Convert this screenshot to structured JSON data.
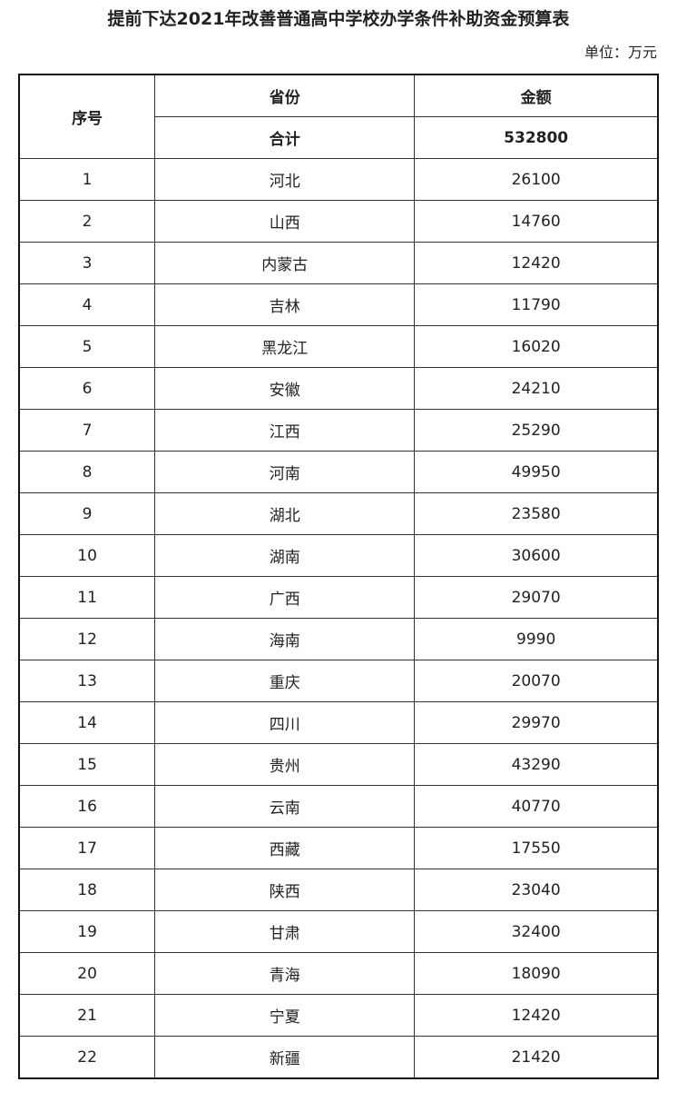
{
  "title": "提前下达2021年改善普通高中学校办学条件补助资金预算表",
  "unit": "单位：万元",
  "headers": {
    "index": "序号",
    "province": "省份",
    "amount": "金额"
  },
  "total": {
    "label": "合计",
    "amount": "532800"
  },
  "rows": [
    {
      "index": "1",
      "province": "河北",
      "amount": "26100"
    },
    {
      "index": "2",
      "province": "山西",
      "amount": "14760"
    },
    {
      "index": "3",
      "province": "内蒙古",
      "amount": "12420"
    },
    {
      "index": "4",
      "province": "吉林",
      "amount": "11790"
    },
    {
      "index": "5",
      "province": "黑龙江",
      "amount": "16020"
    },
    {
      "index": "6",
      "province": "安徽",
      "amount": "24210"
    },
    {
      "index": "7",
      "province": "江西",
      "amount": "25290"
    },
    {
      "index": "8",
      "province": "河南",
      "amount": "49950"
    },
    {
      "index": "9",
      "province": "湖北",
      "amount": "23580"
    },
    {
      "index": "10",
      "province": "湖南",
      "amount": "30600"
    },
    {
      "index": "11",
      "province": "广西",
      "amount": "29070"
    },
    {
      "index": "12",
      "province": "海南",
      "amount": "9990"
    },
    {
      "index": "13",
      "province": "重庆",
      "amount": "20070"
    },
    {
      "index": "14",
      "province": "四川",
      "amount": "29970"
    },
    {
      "index": "15",
      "province": "贵州",
      "amount": "43290"
    },
    {
      "index": "16",
      "province": "云南",
      "amount": "40770"
    },
    {
      "index": "17",
      "province": "西藏",
      "amount": "17550"
    },
    {
      "index": "18",
      "province": "陕西",
      "amount": "23040"
    },
    {
      "index": "19",
      "province": "甘肃",
      "amount": "32400"
    },
    {
      "index": "20",
      "province": "青海",
      "amount": "18090"
    },
    {
      "index": "21",
      "province": "宁夏",
      "amount": "12420"
    },
    {
      "index": "22",
      "province": "新疆",
      "amount": "21420"
    }
  ]
}
